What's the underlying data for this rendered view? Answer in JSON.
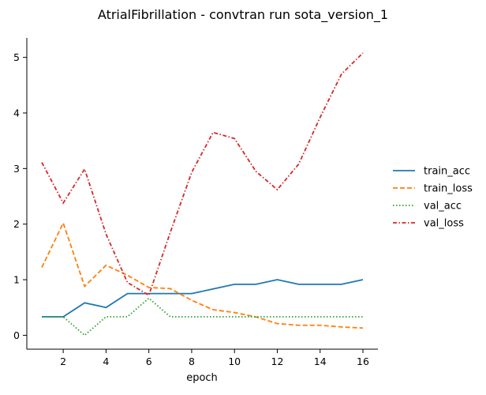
{
  "chart_data": {
    "type": "line",
    "title": "AtrialFibrillation - convtran run sota_version_1",
    "xlabel": "epoch",
    "ylabel": "",
    "x": [
      1,
      2,
      3,
      4,
      5,
      6,
      7,
      8,
      9,
      10,
      11,
      12,
      13,
      14,
      15,
      16
    ],
    "xlim": [
      0.3,
      16.7
    ],
    "ylim": [
      -0.25,
      5.35
    ],
    "xticks": [
      2,
      4,
      6,
      8,
      10,
      12,
      14,
      16
    ],
    "yticks": [
      0,
      1,
      2,
      3,
      4,
      5
    ],
    "grid": false,
    "legend_position": "right",
    "series": [
      {
        "name": "train_acc",
        "color": "#1f77b4",
        "dash": "solid",
        "values": [
          0.333,
          0.333,
          0.583,
          0.5,
          0.75,
          0.75,
          0.75,
          0.75,
          0.833,
          0.917,
          0.917,
          1.0,
          0.917,
          0.917,
          0.917,
          1.0
        ]
      },
      {
        "name": "train_loss",
        "color": "#ff7f0e",
        "dash": "dashed",
        "values": [
          1.22,
          2.02,
          0.88,
          1.26,
          1.08,
          0.86,
          0.84,
          0.63,
          0.46,
          0.41,
          0.33,
          0.21,
          0.18,
          0.18,
          0.15,
          0.13
        ]
      },
      {
        "name": "val_acc",
        "color": "#2ca02c",
        "dash": "dotted",
        "values": [
          0.333,
          0.333,
          0.0,
          0.333,
          0.333,
          0.667,
          0.333,
          0.333,
          0.333,
          0.333,
          0.333,
          0.333,
          0.333,
          0.333,
          0.333,
          0.333
        ]
      },
      {
        "name": "val_loss",
        "color": "#d62728",
        "dash": "dashdot",
        "values": [
          3.11,
          2.38,
          2.99,
          1.82,
          0.95,
          0.72,
          1.85,
          2.93,
          3.65,
          3.54,
          2.95,
          2.62,
          3.08,
          3.92,
          4.7,
          5.08
        ]
      }
    ]
  }
}
